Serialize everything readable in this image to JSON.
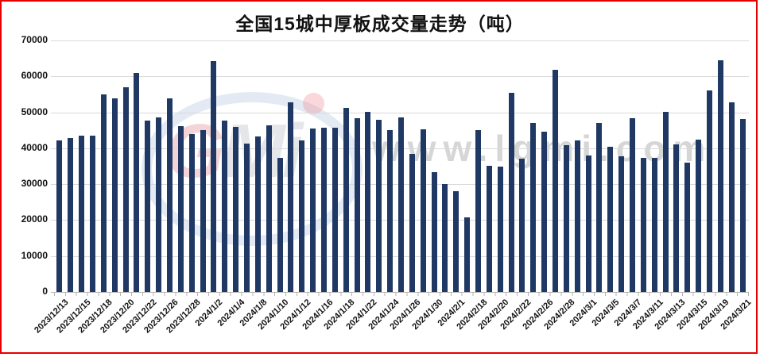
{
  "title": "全国15城中厚板成交量走势（吨）",
  "watermark": {
    "url_text": "www.lgmi.com",
    "logo_letter_g": "G",
    "logo_letters_mi": "Mi"
  },
  "colors": {
    "bar": "#1F3864",
    "gridline": "#D9D9D9",
    "axis": "#B5B5B5",
    "border": "#E60000",
    "title_text": "#111111"
  },
  "chart_data": {
    "type": "bar",
    "title": "全国15城中厚板成交量走势（吨）",
    "xlabel": "",
    "ylabel": "",
    "ylim": [
      0,
      70000
    ],
    "yticks": [
      0,
      10000,
      20000,
      30000,
      40000,
      50000,
      60000,
      70000
    ],
    "grid": true,
    "legend": "none",
    "bar_color": "#1F3864",
    "categories": [
      "2023/12/13",
      "",
      "2023/12/15",
      "",
      "2023/12/18",
      "",
      "2023/12/20",
      "",
      "2023/12/22",
      "",
      "2023/12/26",
      "",
      "2023/12/28",
      "",
      "2024/1/2",
      "",
      "2024/1/4",
      "",
      "2024/1/8",
      "",
      "2024/1/10",
      "",
      "2024/1/12",
      "",
      "2024/1/16",
      "",
      "2024/1/18",
      "",
      "2024/1/22",
      "",
      "2024/1/24",
      "",
      "2024/1/26",
      "",
      "2024/1/30",
      "",
      "2024/2/1",
      "",
      "2024/2/18",
      "",
      "2024/2/20",
      "",
      "2024/2/22",
      "",
      "2024/2/26",
      "",
      "2024/2/28",
      "",
      "2024/3/1",
      "",
      "2024/3/5",
      "",
      "2024/3/7",
      "",
      "2024/3/11",
      "",
      "2024/3/13",
      "",
      "2024/3/15",
      "",
      "2024/3/19",
      "",
      "2024/3/21"
    ],
    "values": [
      42200,
      42900,
      43500,
      43400,
      54900,
      53900,
      57000,
      61000,
      47600,
      48600,
      53900,
      46100,
      43900,
      45000,
      64300,
      47600,
      45900,
      41200,
      43300,
      46300,
      37400,
      52700,
      42100,
      45500,
      45800,
      45800,
      51200,
      48400,
      50100,
      47900,
      45100,
      48500,
      38500,
      45200,
      33400,
      30100,
      28100,
      20800,
      45100,
      35100,
      34900,
      55400,
      37200,
      47100,
      44500,
      61800,
      40900,
      42100,
      37900,
      47100,
      40300,
      37700,
      48400,
      37300,
      37400,
      50100,
      41000,
      35900,
      42400,
      56100,
      64400,
      52800,
      48100
    ]
  }
}
